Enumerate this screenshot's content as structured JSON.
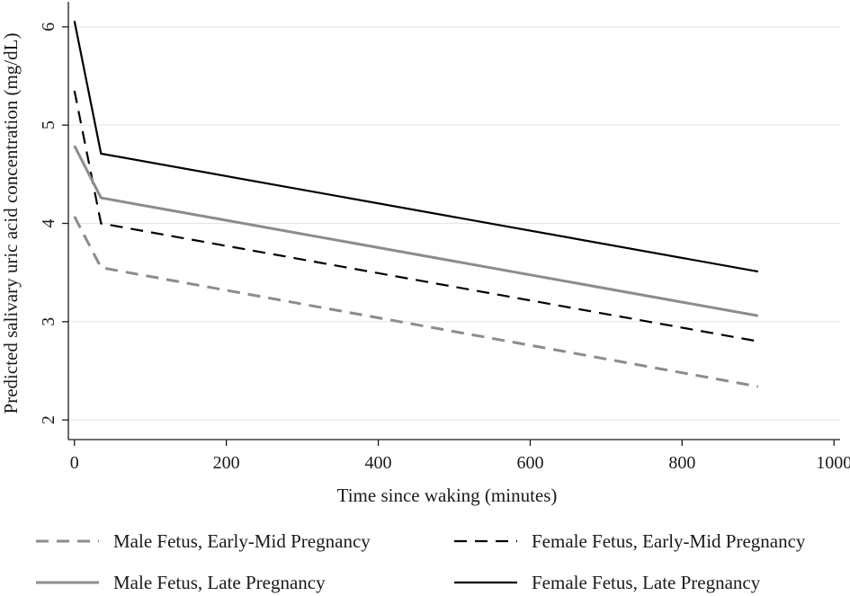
{
  "chart_data": {
    "type": "line",
    "title": "",
    "xlabel": "Time since waking (minutes)",
    "ylabel": "Predicted salivary uric acid concentration (mg/dL)",
    "xlim": [
      -8,
      1008
    ],
    "ylim": [
      1.8,
      6.2
    ],
    "xticks": [
      0,
      200,
      400,
      600,
      800,
      1000
    ],
    "yticks": [
      2,
      3,
      4,
      5,
      6
    ],
    "grid": "horizontal",
    "legend_position": "bottom",
    "series": [
      {
        "name": "Male Fetus, Early-Mid Pregnancy",
        "color": "#8c8c8c",
        "style": "dashed",
        "x": [
          0,
          35,
          900
        ],
        "y": [
          4.07,
          3.55,
          2.34
        ]
      },
      {
        "name": "Female Fetus, Early-Mid Pregnancy",
        "color": "#000000",
        "style": "dashed",
        "x": [
          0,
          35,
          900
        ],
        "y": [
          5.35,
          4.0,
          2.8
        ]
      },
      {
        "name": "Male Fetus, Late Pregnancy",
        "color": "#8c8c8c",
        "style": "solid",
        "x": [
          0,
          35,
          900
        ],
        "y": [
          4.79,
          4.26,
          3.06
        ]
      },
      {
        "name": "Female Fetus, Late Pregnancy",
        "color": "#000000",
        "style": "solid",
        "x": [
          0,
          35,
          900
        ],
        "y": [
          6.06,
          4.71,
          3.51
        ]
      }
    ]
  }
}
